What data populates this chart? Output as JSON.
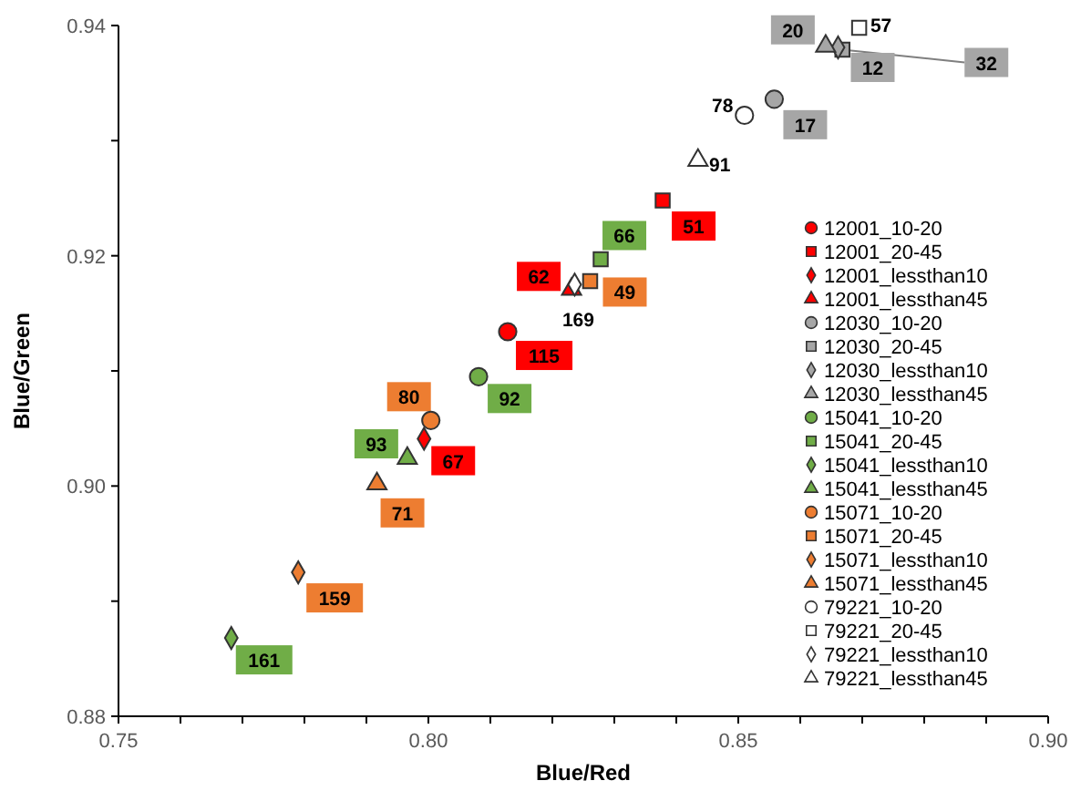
{
  "chart_data": {
    "type": "scatter",
    "xlabel": "Blue/Red",
    "ylabel": "Blue/Green",
    "xlim": [
      0.75,
      0.9
    ],
    "ylim": [
      0.88,
      0.94
    ],
    "xticks": [
      {
        "value": 0.75,
        "label": "0.75"
      },
      {
        "value": 0.76,
        "label": null
      },
      {
        "value": 0.77,
        "label": null
      },
      {
        "value": 0.78,
        "label": null
      },
      {
        "value": 0.79,
        "label": null
      },
      {
        "value": 0.8,
        "label": "0.80"
      },
      {
        "value": 0.81,
        "label": null
      },
      {
        "value": 0.82,
        "label": null
      },
      {
        "value": 0.83,
        "label": null
      },
      {
        "value": 0.84,
        "label": null
      },
      {
        "value": 0.85,
        "label": "0.85"
      },
      {
        "value": 0.86,
        "label": null
      },
      {
        "value": 0.87,
        "label": null
      },
      {
        "value": 0.88,
        "label": null
      },
      {
        "value": 0.89,
        "label": null
      },
      {
        "value": 0.9,
        "label": "0.90"
      }
    ],
    "yticks": [
      {
        "value": 0.88,
        "label": "0.88"
      },
      {
        "value": 0.89,
        "label": null
      },
      {
        "value": 0.9,
        "label": "0.90"
      },
      {
        "value": 0.91,
        "label": null
      },
      {
        "value": 0.92,
        "label": "0.92"
      },
      {
        "value": 0.93,
        "label": null
      },
      {
        "value": 0.94,
        "label": "0.94"
      }
    ],
    "grid": false,
    "legend": "right",
    "series": [
      {
        "name": "12001_10-20",
        "color": "#ff0000",
        "marker": "circle",
        "x": [
          0.8128
        ],
        "values": [
          0.9134
        ]
      },
      {
        "name": "12001_20-45",
        "color": "#ff0000",
        "marker": "square",
        "x": [
          0.8378
        ],
        "values": [
          0.9248
        ]
      },
      {
        "name": "12001_lessthan10",
        "color": "#ff0000",
        "marker": "diamond",
        "x": [
          0.7993
        ],
        "values": [
          0.9041
        ]
      },
      {
        "name": "12001_lessthan45",
        "color": "#ff0000",
        "marker": "triangle",
        "x": [
          0.8231
        ],
        "values": [
          0.9171
        ]
      },
      {
        "name": "12030_10-20",
        "color": "#a6a6a6",
        "marker": "circle",
        "x": [
          0.8558
        ],
        "values": [
          0.9336
        ]
      },
      {
        "name": "12030_20-45",
        "color": "#a6a6a6",
        "marker": "square",
        "x": [
          0.8668
        ],
        "values": [
          0.9379
        ]
      },
      {
        "name": "12030_lessthan10",
        "color": "#a6a6a6",
        "marker": "diamond",
        "x": [
          0.8661
        ],
        "values": [
          0.9381
        ]
      },
      {
        "name": "12030_lessthan45",
        "color": "#a6a6a6",
        "marker": "triangle",
        "x": [
          0.8641
        ],
        "values": [
          0.9382
        ]
      },
      {
        "name": "15041_10-20",
        "color": "#70ad47",
        "marker": "circle",
        "x": [
          0.8081
        ],
        "values": [
          0.9095
        ]
      },
      {
        "name": "15041_20-45",
        "color": "#70ad47",
        "marker": "square",
        "x": [
          0.8278
        ],
        "values": [
          0.9197
        ]
      },
      {
        "name": "15041_lessthan10",
        "color": "#70ad47",
        "marker": "diamond",
        "x": [
          0.7682
        ],
        "values": [
          0.8868
        ]
      },
      {
        "name": "15041_lessthan45",
        "color": "#70ad47",
        "marker": "triangle",
        "x": [
          0.7966
        ],
        "values": [
          0.9024
        ]
      },
      {
        "name": "15071_10-20",
        "color": "#ed7d31",
        "marker": "circle",
        "x": [
          0.8004
        ],
        "values": [
          0.9057
        ]
      },
      {
        "name": "15071_20-45",
        "color": "#ed7d31",
        "marker": "square",
        "x": [
          0.8261
        ],
        "values": [
          0.9178
        ]
      },
      {
        "name": "15071_lessthan10",
        "color": "#ed7d31",
        "marker": "diamond",
        "x": [
          0.779
        ],
        "values": [
          0.8925
        ]
      },
      {
        "name": "15071_lessthan45",
        "color": "#ed7d31",
        "marker": "triangle",
        "x": [
          0.7917
        ],
        "values": [
          0.9002
        ]
      },
      {
        "name": "79221_10-20",
        "color": "#ffffff",
        "marker": "circle",
        "x": [
          0.851
        ],
        "values": [
          0.9322
        ]
      },
      {
        "name": "79221_20-45",
        "color": "#ffffff",
        "marker": "square",
        "x": [
          0.8695
        ],
        "values": [
          0.9398
        ]
      },
      {
        "name": "79221_lessthan10",
        "color": "#ffffff",
        "marker": "diamond",
        "x": [
          0.8236
        ],
        "values": [
          0.9175
        ]
      },
      {
        "name": "79221_lessthan45",
        "color": "#ffffff",
        "marker": "triangle",
        "x": [
          0.8435
        ],
        "values": [
          0.9283
        ]
      }
    ],
    "annotations": [
      {
        "text": "115",
        "x": 0.8128,
        "y": 0.9134
      },
      {
        "text": "51",
        "x": 0.8378,
        "y": 0.9248
      },
      {
        "text": "67",
        "x": 0.7993,
        "y": 0.9041
      },
      {
        "text": "62",
        "x": 0.8231,
        "y": 0.9171
      },
      {
        "text": "17",
        "x": 0.8558,
        "y": 0.9336
      },
      {
        "text": "32",
        "x": 0.8668,
        "y": 0.9379
      },
      {
        "text": "12",
        "x": 0.8661,
        "y": 0.9381
      },
      {
        "text": "20",
        "x": 0.8641,
        "y": 0.9382
      },
      {
        "text": "92",
        "x": 0.8081,
        "y": 0.9095
      },
      {
        "text": "66",
        "x": 0.8278,
        "y": 0.9197
      },
      {
        "text": "161",
        "x": 0.7682,
        "y": 0.8868
      },
      {
        "text": "93",
        "x": 0.7966,
        "y": 0.9024
      },
      {
        "text": "80",
        "x": 0.8004,
        "y": 0.9057
      },
      {
        "text": "49",
        "x": 0.8261,
        "y": 0.9178
      },
      {
        "text": "159",
        "x": 0.779,
        "y": 0.8925
      },
      {
        "text": "71",
        "x": 0.7917,
        "y": 0.9002
      },
      {
        "text": "78",
        "x": 0.851,
        "y": 0.9322
      },
      {
        "text": "57",
        "x": 0.8695,
        "y": 0.9398
      },
      {
        "text": "169",
        "x": 0.8236,
        "y": 0.9175
      },
      {
        "text": "91",
        "x": 0.8435,
        "y": 0.9283
      }
    ]
  }
}
